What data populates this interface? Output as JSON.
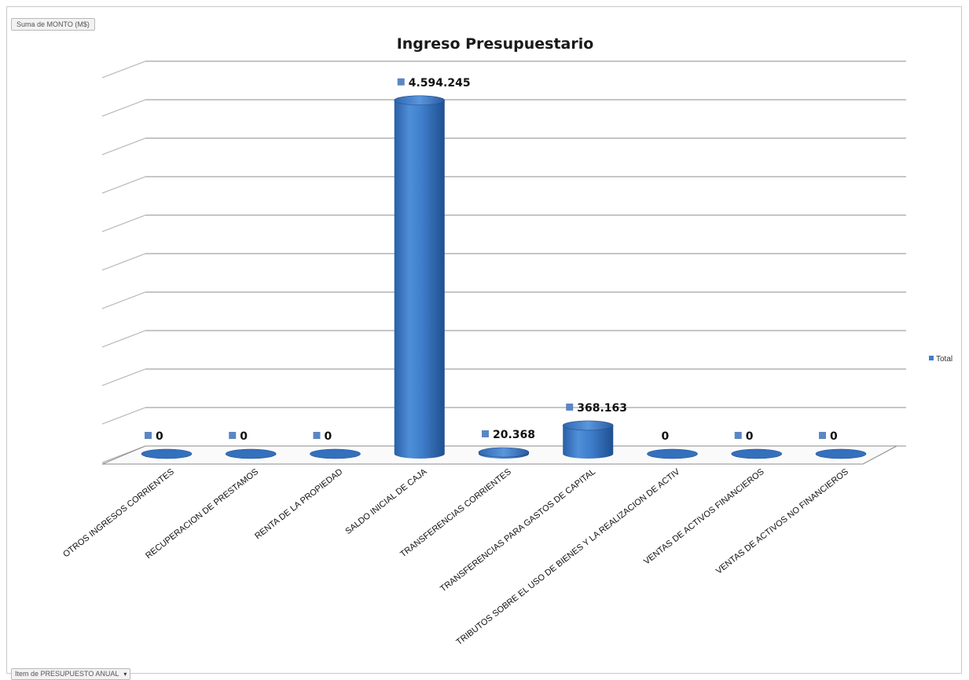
{
  "pivot": {
    "data_field_label": "Suma de MONTO (M$)",
    "axis_field_label": "Item de PRESUPUESTO ANUAL",
    "axis_field_dropdown": "▾"
  },
  "chart_data": {
    "type": "bar",
    "style": "3d-cylinder",
    "title": "Ingreso Presupuestario",
    "xlabel": "",
    "ylabel": "",
    "categories": [
      "OTROS INGRESOS CORRIENTES",
      "RECUPERACION DE PRESTAMOS",
      "RENTA DE LA PROPIEDAD",
      "SALDO INICIAL DE CAJA",
      "TRANSFERENCIAS CORRIENTES",
      "TRANSFERENCIAS PARA GASTOS DE CAPITAL",
      "TRIBUTOS SOBRE EL USO DE BIENES Y LA REALIZACION DE ACTIV",
      "VENTAS DE ACTIVOS  FINANCIEROS",
      "VENTAS DE ACTIVOS NO FINANCIEROS"
    ],
    "series": [
      {
        "name": "Total",
        "values": [
          0,
          0,
          0,
          4594245,
          20368,
          368163,
          0,
          0,
          0
        ],
        "labels": [
          "0",
          "0",
          "0",
          "4.594.245",
          "20.368",
          "368.163",
          "0",
          "0",
          "0"
        ]
      }
    ],
    "ylim": [
      0,
      5000000
    ],
    "grid": true,
    "legend": "right",
    "color": "#3f7ecb"
  }
}
